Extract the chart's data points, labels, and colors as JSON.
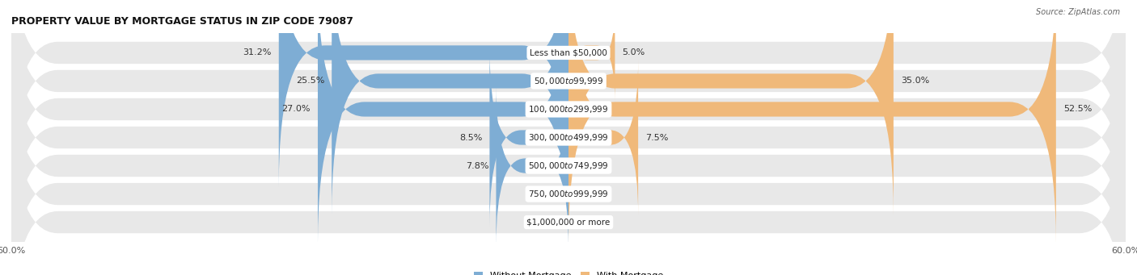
{
  "title": "PROPERTY VALUE BY MORTGAGE STATUS IN ZIP CODE 79087",
  "source": "Source: ZipAtlas.com",
  "categories": [
    "Less than $50,000",
    "$50,000 to $99,999",
    "$100,000 to $299,999",
    "$300,000 to $499,999",
    "$500,000 to $749,999",
    "$750,000 to $999,999",
    "$1,000,000 or more"
  ],
  "without_mortgage": [
    31.2,
    25.5,
    27.0,
    8.5,
    7.8,
    0.0,
    0.0
  ],
  "with_mortgage": [
    5.0,
    35.0,
    52.5,
    7.5,
    0.0,
    0.0,
    0.0
  ],
  "color_without": "#7eadd4",
  "color_with": "#f0b97a",
  "axis_limit": 60.0,
  "bg_row_color": "#e8e8e8",
  "bg_row_color_alt": "#f0f0f0",
  "title_fontsize": 9,
  "bar_label_fontsize": 8,
  "category_fontsize": 7.5,
  "legend_fontsize": 8,
  "axis_label_fontsize": 8
}
